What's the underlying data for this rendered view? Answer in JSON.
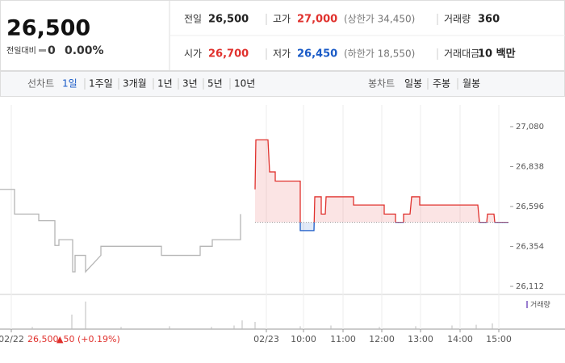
{
  "quote": {
    "price": "26,500",
    "change_label": "전일대비",
    "change": "0",
    "change_pct": "0.00%"
  },
  "stats": [
    {
      "label": "전일",
      "value": "26,500"
    },
    {
      "label": "고가",
      "value": "27,000",
      "note": "(상한가 34,450)"
    },
    {
      "label": "거래량",
      "value": "360"
    },
    {
      "label": "시가",
      "value": "26,700"
    },
    {
      "label": "저가",
      "value": "26,450",
      "note": "(하한가 18,550)"
    },
    {
      "label": "거래대금",
      "value": "10 백만"
    }
  ],
  "tabs": {
    "line_label": "선차트",
    "line": [
      "1일",
      "1주일",
      "3개월",
      "1년",
      "3년",
      "5년",
      "10년"
    ],
    "candle_label": "봉차트",
    "candle": [
      "일봉",
      "주봉",
      "월봉"
    ]
  },
  "footer": {
    "date": "02/22",
    "price": "26,500",
    "change": "▲50",
    "change_pct": "(+0.19%)"
  },
  "chart_data": {
    "type": "line",
    "xlim": [
      0,
      630
    ],
    "ylim": [
      26112,
      27080
    ],
    "xticks": [
      {
        "value": 14,
        "label": "02/22"
      },
      {
        "value": 330,
        "label": "02/23"
      },
      {
        "value": 376,
        "label": "10:00"
      },
      {
        "value": 425,
        "label": "11:00"
      },
      {
        "value": 473,
        "label": "12:00"
      },
      {
        "value": 521,
        "label": "13:00"
      },
      {
        "value": 570,
        "label": "14:00"
      },
      {
        "value": 618,
        "label": "15:00"
      }
    ],
    "yticks": [
      {
        "value": 26112,
        "label": "26,112"
      },
      {
        "value": 26354,
        "label": "26,354"
      },
      {
        "value": 26596,
        "label": "26,596"
      },
      {
        "value": 26838,
        "label": "26,838"
      },
      {
        "value": 27080,
        "label": "27,080"
      }
    ],
    "reference": 26500,
    "up_color": "#e0312d",
    "down_color": "#1a5bc7",
    "prev_color": "#b5b5b5",
    "prev": {
      "x": [
        0,
        18,
        18,
        48,
        48,
        68,
        68,
        73,
        73,
        90,
        90,
        93,
        93,
        106,
        106,
        125,
        125,
        200,
        200,
        248,
        248,
        263,
        263,
        298,
        298
      ],
      "values": [
        26700,
        26700,
        26550,
        26550,
        26510,
        26510,
        26360,
        26360,
        26395,
        26395,
        26200,
        26200,
        26300,
        26300,
        26200,
        26300,
        26355,
        26355,
        26300,
        26300,
        26355,
        26355,
        26395,
        26395,
        26550
      ]
    },
    "today": {
      "x": [
        316,
        317,
        332,
        334,
        341,
        341,
        372,
        372,
        389,
        390,
        398,
        398,
        403,
        404,
        438,
        438,
        476,
        476,
        490,
        490,
        500,
        500,
        508,
        510,
        520,
        520,
        592,
        594,
        603,
        604,
        612,
        613,
        630
      ],
      "values": [
        26700,
        27000,
        27000,
        26806,
        26806,
        26750,
        26750,
        26450,
        26450,
        26655,
        26655,
        26550,
        26550,
        26655,
        26655,
        26605,
        26605,
        26550,
        26550,
        26500,
        26500,
        26550,
        26550,
        26655,
        26655,
        26605,
        26605,
        26500,
        26500,
        26550,
        26550,
        26500,
        26500
      ]
    },
    "volume_label": "거래량",
    "volume": {
      "x": [
        40,
        89,
        106,
        150,
        210,
        262,
        290,
        300,
        316,
        372,
        410,
        470,
        515,
        560,
        590,
        610
      ],
      "values": [
        3,
        20,
        38,
        3,
        4,
        3,
        5,
        12,
        10,
        4,
        5,
        3,
        4,
        5,
        6,
        8
      ],
      "vlim": [
        0,
        40
      ]
    }
  }
}
